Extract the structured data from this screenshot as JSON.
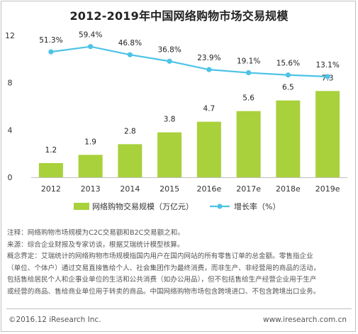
{
  "chart_data": {
    "type": "bar",
    "title": "2012-2019年中国网络购物市场交易规模",
    "categories": [
      "2012",
      "2013",
      "2014",
      "2015",
      "2016e",
      "2017e",
      "2018e",
      "2019e"
    ],
    "series": [
      {
        "name": "网络购物交易规模（万亿元）",
        "type": "bar",
        "axis": "left",
        "values": [
          1.2,
          1.9,
          2.8,
          3.8,
          4.7,
          5.6,
          6.5,
          7.3
        ],
        "labels": [
          "1.2",
          "1.9",
          "2.8",
          "3.8",
          "4.7",
          "5.6",
          "6.5",
          "7.3"
        ],
        "color": "#a8d13b"
      },
      {
        "name": "增长率（%）",
        "type": "line",
        "axis": "left-scaled",
        "values": [
          51.3,
          59.4,
          46.8,
          36.8,
          23.9,
          19.1,
          15.6,
          13.1
        ],
        "labels": [
          "51.3%",
          "59.4%",
          "46.8%",
          "36.8%",
          "23.9%",
          "19.1%",
          "15.6%",
          "13.1%"
        ],
        "color": "#4dc3e6"
      }
    ],
    "y_ticks": [
      "0",
      "4",
      "8",
      "12"
    ],
    "ylim": [
      0,
      12
    ],
    "grid": false,
    "legend_position": "bottom"
  },
  "notes": {
    "line1": "注释：网络购物市场规模为C2C交易额和B2C交易额之和。",
    "line2": "来源：综合企业财报及专家访谈，根据艾瑞统计模型核算。",
    "line3": "概念界定：艾瑞统计的网络购物市场规模指国内用户在国内网站的所有零售订单的总金额。零售指企业",
    "line4": "（单位、个体户）通过交易直接售给个人、社会集团作为最终消费，而非生产、非经营用的商品的活动，",
    "line5": "包括售给居民个人和企事业单位的生活和公共消费（如办公用品），但不包括售给生产经营企业用于生产",
    "line6": "或经营的商品、售给商业单位用于转卖的商品。中国网络购物市场包含跨境进口、不包含跨境出口业务。"
  },
  "footer": {
    "copyright": "©2016.12 iResearch Inc.",
    "site": "www.iresearch.com.cn"
  }
}
